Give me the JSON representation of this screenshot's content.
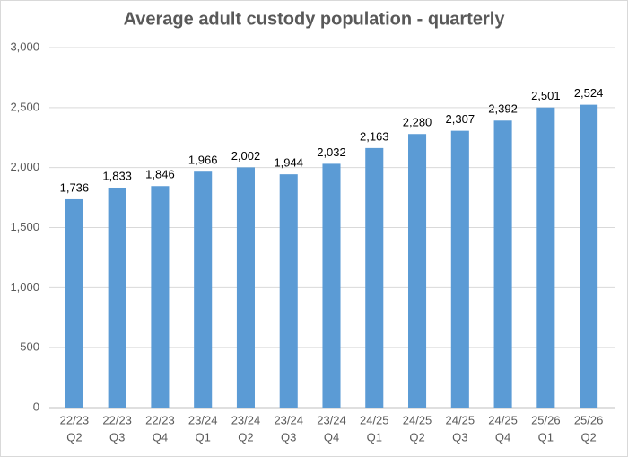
{
  "chart_data": {
    "type": "bar",
    "title": "Average adult custody population - quarterly",
    "categories": [
      [
        "22/23",
        "Q2"
      ],
      [
        "22/23",
        "Q3"
      ],
      [
        "22/23",
        "Q4"
      ],
      [
        "23/24",
        "Q1"
      ],
      [
        "23/24",
        "Q2"
      ],
      [
        "23/24",
        "Q3"
      ],
      [
        "23/24",
        "Q4"
      ],
      [
        "24/25",
        "Q1"
      ],
      [
        "24/25",
        "Q2"
      ],
      [
        "24/25",
        "Q3"
      ],
      [
        "24/25",
        "Q4"
      ],
      [
        "25/26",
        "Q1"
      ],
      [
        "25/26",
        "Q2"
      ]
    ],
    "values": [
      1736,
      1833,
      1846,
      1966,
      2002,
      1944,
      2032,
      2163,
      2280,
      2307,
      2392,
      2501,
      2524
    ],
    "value_labels": [
      "1,736",
      "1,833",
      "1,846",
      "1,966",
      "2,002",
      "1,944",
      "2,032",
      "2,163",
      "2,280",
      "2,307",
      "2,392",
      "2,501",
      "2,524"
    ],
    "color": "#5b9bd5",
    "ylim": [
      0,
      3000
    ],
    "yticks": [
      0,
      500,
      {
        "value": 1000,
        "label": "1,000"
      },
      {
        "value": 1500,
        "label": "1,500"
      },
      {
        "value": 2000,
        "label": "2,000"
      },
      {
        "value": 2500,
        "label": "2,500"
      },
      {
        "value": 3000,
        "label": "3,000"
      }
    ],
    "grid": true
  }
}
